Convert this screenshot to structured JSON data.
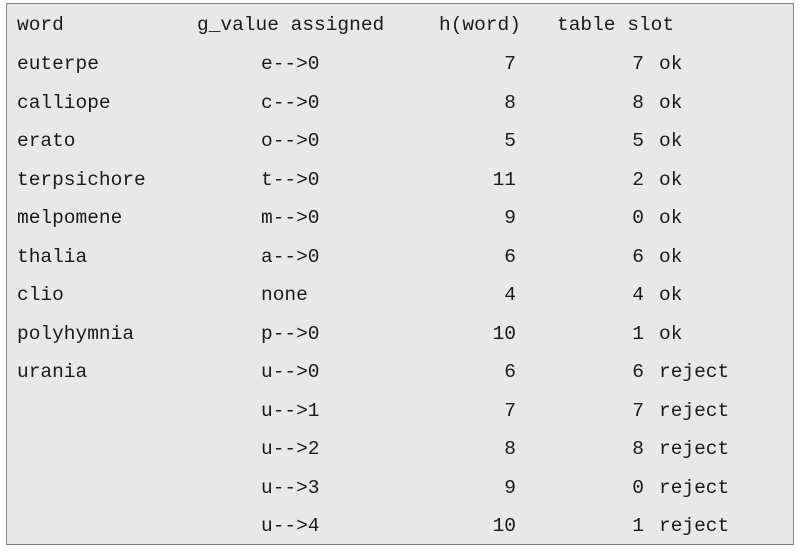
{
  "header": {
    "word": "word",
    "g_value": "g_value assigned",
    "h": "h(word)",
    "slot": "table slot"
  },
  "rows": [
    {
      "word": "euterpe",
      "g": "e-->0",
      "h": "7",
      "slot": "7",
      "status": "ok"
    },
    {
      "word": "calliope",
      "g": "c-->0",
      "h": "8",
      "slot": "8",
      "status": "ok"
    },
    {
      "word": "erato",
      "g": "o-->0",
      "h": "5",
      "slot": "5",
      "status": "ok"
    },
    {
      "word": "terpsichore",
      "g": "t-->0",
      "h": "11",
      "slot": "2",
      "status": "ok"
    },
    {
      "word": "melpomene",
      "g": "m-->0",
      "h": "9",
      "slot": "0",
      "status": "ok"
    },
    {
      "word": "thalia",
      "g": "a-->0",
      "h": "6",
      "slot": "6",
      "status": "ok"
    },
    {
      "word": "clio",
      "g": "none",
      "h": "4",
      "slot": "4",
      "status": "ok"
    },
    {
      "word": "polyhymnia",
      "g": "p-->0",
      "h": "10",
      "slot": "1",
      "status": "ok"
    },
    {
      "word": "urania",
      "g": "u-->0",
      "h": "6",
      "slot": "6",
      "status": "reject"
    },
    {
      "word": "",
      "g": "u-->1",
      "h": "7",
      "slot": "7",
      "status": "reject"
    },
    {
      "word": "",
      "g": "u-->2",
      "h": "8",
      "slot": "8",
      "status": "reject"
    },
    {
      "word": "",
      "g": "u-->3",
      "h": "9",
      "slot": "0",
      "status": "reject"
    },
    {
      "word": "",
      "g": "u-->4",
      "h": "10",
      "slot": "1",
      "status": "reject"
    }
  ]
}
